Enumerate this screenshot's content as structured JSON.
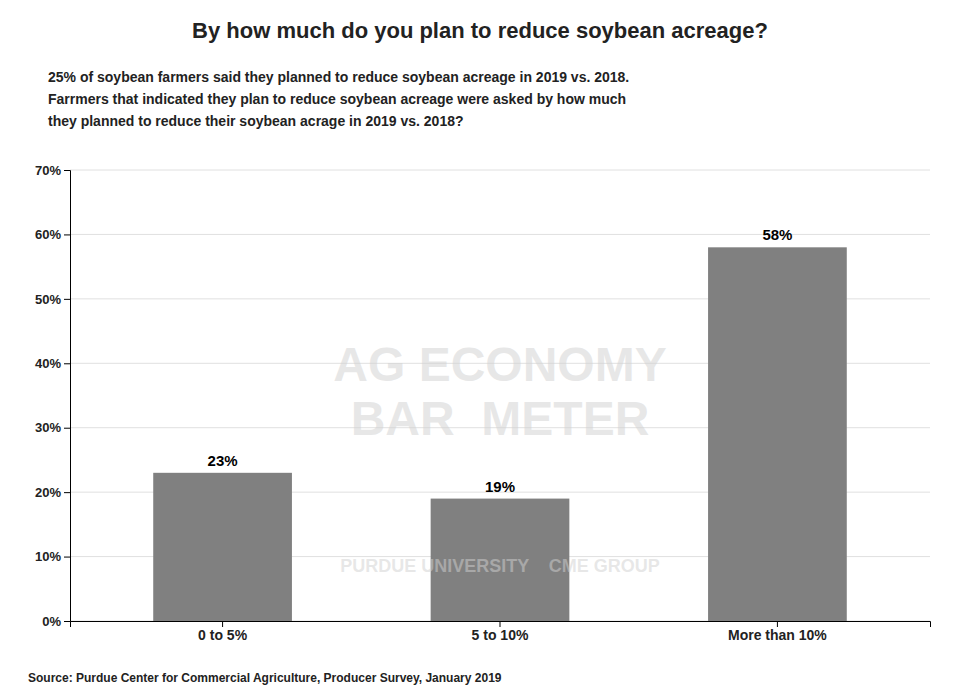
{
  "chart_data": {
    "type": "bar",
    "title": "By how much do you plan to reduce soybean acreage?",
    "subtitle": [
      "25% of soybean farmers said they planned to reduce soybean acreage in 2019 vs. 2018.",
      "Farrmers that indicated they plan to reduce soybean acreage were asked by how much",
      "they planned to reduce their soybean acrage in 2019 vs. 2018?"
    ],
    "source": "Source: Purdue Center for Commercial Agriculture, Producer Survey, January 2019",
    "annotations": [
      "AG ECONOMY",
      "BAR  METER",
      "PURDUE UNIVERSITY    CME GROUP"
    ],
    "categories": [
      "0 to 5%",
      "5 to 10%",
      "More than 10%"
    ],
    "values": [
      23,
      19,
      58
    ],
    "value_labels": [
      "23%",
      "19%",
      "58%"
    ],
    "data_labels": true,
    "color": "#808080",
    "ylim": [
      0,
      70
    ],
    "yticks": [
      {
        "value": 0,
        "label": "0%"
      },
      {
        "value": 10,
        "label": "10%"
      },
      {
        "value": 20,
        "label": "20%"
      },
      {
        "value": 30,
        "label": "30%"
      },
      {
        "value": 40,
        "label": "40%"
      },
      {
        "value": 50,
        "label": "50%"
      },
      {
        "value": 60,
        "label": "60%"
      },
      {
        "value": 70,
        "label": "70%"
      }
    ],
    "grid": true
  }
}
